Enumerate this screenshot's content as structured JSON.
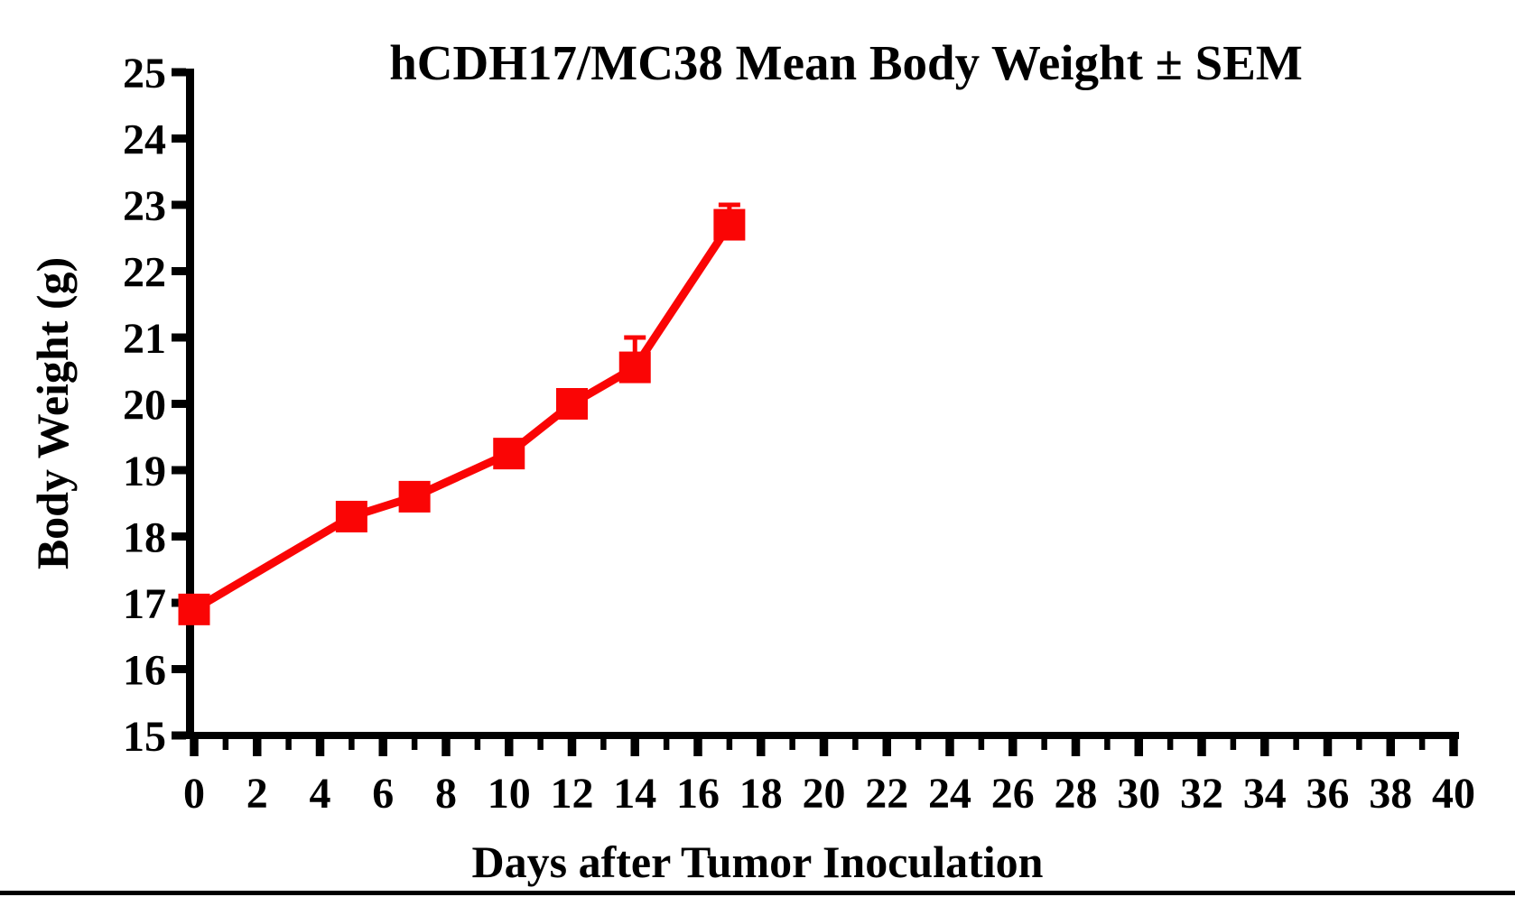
{
  "page": {
    "background_color": "#FFFFFF",
    "bottom_rule_color": "#000000",
    "axis_color": "#000000"
  },
  "chart_data": {
    "type": "line",
    "title": "hCDH17/MC38 Mean Body Weight ± SEM",
    "xlabel": "Days after Tumor Inoculation",
    "ylabel": "Body Weight (g)",
    "xlim": [
      0,
      40
    ],
    "ylim": [
      15,
      25
    ],
    "x_major_tick_step": 2,
    "x_minor_tick_step": 1,
    "y_tick_step": 1,
    "x_tick_labels": [
      "0",
      "2",
      "4",
      "6",
      "8",
      "10",
      "12",
      "14",
      "16",
      "18",
      "20",
      "22",
      "24",
      "26",
      "28",
      "30",
      "32",
      "34",
      "36",
      "38",
      "40"
    ],
    "y_tick_labels": [
      "15",
      "16",
      "17",
      "18",
      "19",
      "20",
      "21",
      "22",
      "23",
      "24",
      "25"
    ],
    "grid": false,
    "legend_position": "none",
    "error_bars": "SEM, upward caps visible on days 14 and 17 only",
    "series": [
      {
        "color": "#FA0505",
        "marker": "filled-square",
        "x": [
          0,
          5,
          7,
          10,
          12,
          14,
          17
        ],
        "y": [
          16.9,
          18.3,
          18.6,
          19.25,
          20.0,
          20.55,
          22.7
        ],
        "sem_upper": [
          null,
          null,
          null,
          null,
          null,
          0.45,
          0.3
        ]
      }
    ]
  }
}
